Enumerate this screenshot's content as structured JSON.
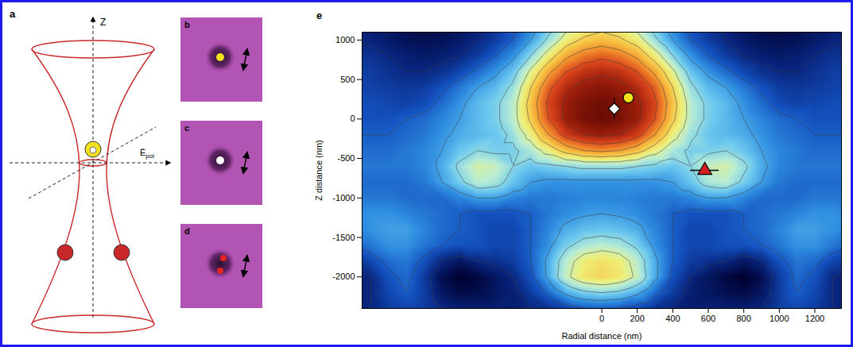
{
  "diagram": {
    "label": "a",
    "z_axis": "Z",
    "polarization": {
      "symbol": "Ē",
      "subscript": "pol"
    },
    "particles": [
      {
        "color": "#f2e11c",
        "core": "#ffffff"
      },
      {
        "color": "#c8282a"
      },
      {
        "color": "#c8282a"
      }
    ]
  },
  "images": [
    {
      "label": "b",
      "particles": [
        {
          "color": "#f2e11c"
        }
      ]
    },
    {
      "label": "c",
      "particles": [
        {
          "color": "#ffffff"
        }
      ]
    },
    {
      "label": "d",
      "particles": [
        {
          "color": "#e02424"
        },
        {
          "color": "#e02424"
        }
      ]
    }
  ],
  "chart_data": {
    "label": "e",
    "type": "contour",
    "xlabel": "Radial distance (nm)",
    "ylabel": "Z distance (nm)",
    "xlim": [
      -1350,
      1350
    ],
    "xticks": [
      0,
      200,
      400,
      600,
      800,
      1000,
      1200
    ],
    "ylim": [
      -2400,
      1100
    ],
    "yticks": [
      -2000,
      -1500,
      -1000,
      -500,
      0,
      500,
      1000
    ],
    "grid_r": [
      0,
      100,
      200,
      300,
      400,
      500,
      600,
      700,
      800,
      900,
      1000,
      1100,
      1200,
      1300,
      1400
    ],
    "grid_z": [
      1200,
      1000,
      800,
      600,
      400,
      200,
      0,
      -200,
      -400,
      -600,
      -800,
      -1000,
      -1200,
      -1400,
      -1600,
      -1800,
      -2000,
      -2200,
      -2400
    ],
    "cells": [
      [
        55,
        52,
        45,
        35,
        25,
        18,
        12,
        8,
        5,
        4,
        3,
        4,
        6,
        8,
        10
      ],
      [
        65,
        62,
        55,
        42,
        30,
        20,
        14,
        10,
        7,
        5,
        4,
        5,
        7,
        9,
        10
      ],
      [
        78,
        75,
        68,
        55,
        40,
        28,
        20,
        14,
        10,
        8,
        7,
        8,
        10,
        12,
        12
      ],
      [
        88,
        86,
        80,
        68,
        52,
        36,
        28,
        22,
        16,
        12,
        10,
        10,
        12,
        14,
        14
      ],
      [
        95,
        93,
        88,
        78,
        60,
        42,
        34,
        30,
        24,
        18,
        14,
        13,
        14,
        15,
        16
      ],
      [
        99,
        97,
        92,
        82,
        64,
        46,
        38,
        34,
        28,
        22,
        17,
        15,
        16,
        17,
        18
      ],
      [
        100,
        98,
        92,
        80,
        62,
        46,
        38,
        34,
        30,
        26,
        22,
        20,
        18,
        18,
        18
      ],
      [
        92,
        90,
        84,
        70,
        54,
        42,
        36,
        34,
        32,
        28,
        24,
        22,
        20,
        20,
        20
      ],
      [
        72,
        70,
        64,
        54,
        44,
        38,
        38,
        40,
        36,
        30,
        26,
        24,
        22,
        22,
        22
      ],
      [
        42,
        42,
        40,
        38,
        36,
        40,
        48,
        50,
        42,
        32,
        26,
        24,
        24,
        24,
        24
      ],
      [
        28,
        28,
        28,
        28,
        30,
        36,
        44,
        46,
        38,
        30,
        24,
        22,
        22,
        22,
        22
      ],
      [
        26,
        26,
        25,
        24,
        24,
        26,
        30,
        30,
        26,
        22,
        22,
        22,
        24,
        24,
        24
      ],
      [
        30,
        29,
        27,
        24,
        20,
        18,
        18,
        18,
        20,
        22,
        24,
        26,
        28,
        28,
        26
      ],
      [
        36,
        35,
        32,
        26,
        20,
        16,
        16,
        18,
        20,
        22,
        26,
        30,
        30,
        28,
        26
      ],
      [
        46,
        44,
        38,
        28,
        20,
        16,
        16,
        18,
        18,
        20,
        24,
        28,
        28,
        24,
        20
      ],
      [
        58,
        55,
        46,
        32,
        20,
        14,
        12,
        10,
        6,
        10,
        18,
        24,
        22,
        16,
        12
      ],
      [
        60,
        57,
        48,
        32,
        18,
        10,
        6,
        2,
        0,
        4,
        14,
        22,
        18,
        10,
        8
      ],
      [
        40,
        38,
        32,
        22,
        14,
        8,
        6,
        4,
        3,
        6,
        14,
        20,
        16,
        10,
        8
      ],
      [
        20,
        19,
        16,
        12,
        10,
        8,
        8,
        8,
        8,
        10,
        14,
        16,
        14,
        10,
        8
      ]
    ],
    "points": [
      {
        "x": 70,
        "y": 130,
        "x_error": 25,
        "y_error": 130,
        "color": "#ffffff",
        "marker": "diamond"
      },
      {
        "x": 150,
        "y": 270,
        "x_error": 30,
        "y_error": 40,
        "color": "#f2e11c",
        "marker": "circle"
      },
      {
        "x": 580,
        "y": -650,
        "x_error": 80,
        "y_error": 30,
        "color": "#d42020",
        "marker": "triangle"
      }
    ]
  }
}
